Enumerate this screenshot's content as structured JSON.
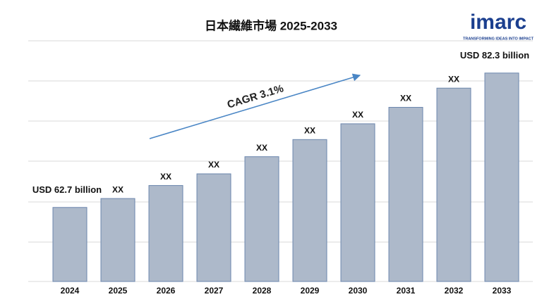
{
  "chart_data": {
    "type": "bar",
    "title": "日本繊維市場 2025-2033",
    "categories": [
      "2024",
      "2025",
      "2026",
      "2027",
      "2028",
      "2029",
      "2030",
      "2031",
      "2032",
      "2033"
    ],
    "values": [
      62.7,
      64.0,
      65.9,
      67.6,
      70.1,
      72.6,
      74.9,
      77.3,
      80.1,
      82.3
    ],
    "value_labels": [
      "USD 62.7 billion",
      "XX",
      "XX",
      "XX",
      "XX",
      "XX",
      "XX",
      "XX",
      "XX",
      "USD 82.3 billion"
    ],
    "color": "#adb9ca",
    "edge_color": "#6b86ad",
    "ylim": [
      51.9,
      87.0
    ],
    "annotation": "CAGR 3.1%",
    "logo": {
      "name": "imarc",
      "tagline": "TRANSFORMING IDEAS INTO IMPACT"
    }
  }
}
